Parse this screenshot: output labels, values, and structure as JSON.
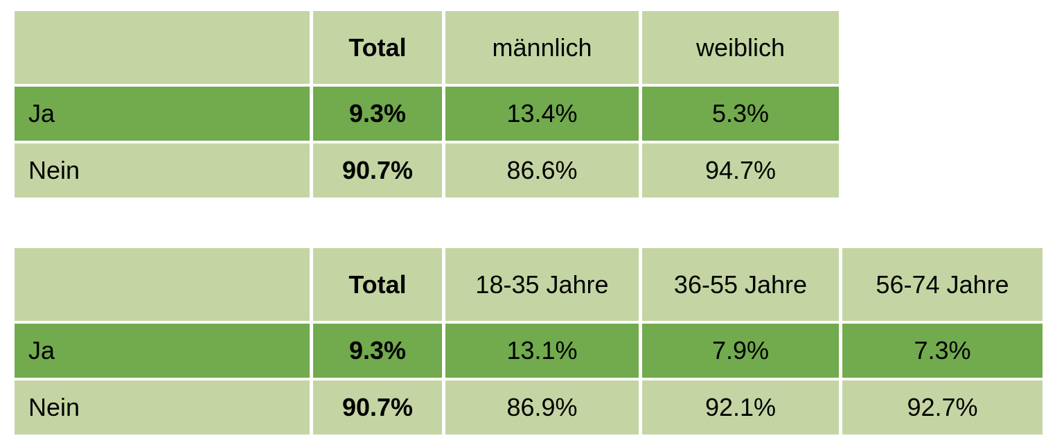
{
  "table_gender": {
    "headers": [
      "",
      "Total",
      "männlich",
      "weiblich"
    ],
    "rows": [
      {
        "label": "Ja",
        "values": [
          "9.3%",
          "13.4%",
          "5.3%"
        ]
      },
      {
        "label": "Nein",
        "values": [
          "90.7%",
          "86.6%",
          "94.7%"
        ]
      }
    ]
  },
  "table_age": {
    "headers": [
      "",
      "Total",
      "18-35 Jahre",
      "36-55 Jahre",
      "56-74 Jahre"
    ],
    "rows": [
      {
        "label": "Ja",
        "values": [
          "9.3%",
          "13.1%",
          "7.9%",
          "7.3%"
        ]
      },
      {
        "label": "Nein",
        "values": [
          "90.7%",
          "86.9%",
          "92.1%",
          "92.7%"
        ]
      }
    ]
  },
  "colors": {
    "header_fill": "#c4d5a3",
    "highlight_row_fill": "#72aa4e",
    "normal_row_fill": "#c4d5a3"
  }
}
